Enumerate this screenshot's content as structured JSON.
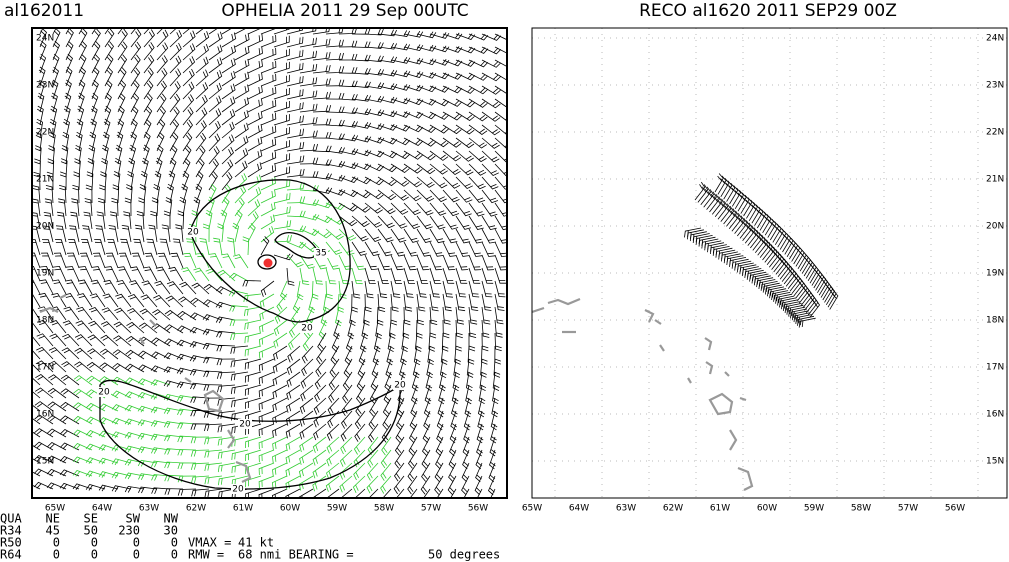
{
  "left_panel": {
    "id": "al162011",
    "title": "OPHELIA 2011 29 Sep 00UTC",
    "lat_labels": [
      "24N",
      "23N",
      "22N",
      "21N",
      "20N",
      "19N",
      "18N",
      "17N",
      "16N",
      "15N"
    ],
    "lon_labels": [
      "65W",
      "64W",
      "63W",
      "62W",
      "61W",
      "60W",
      "59W",
      "58W",
      "57W",
      "56W"
    ],
    "contour_labels": [
      "20",
      "20",
      "20",
      "20",
      "20",
      "20",
      "35"
    ]
  },
  "right_panel": {
    "title": "RECO al1620 2011 SEP29 00Z",
    "lat_labels": [
      "24N",
      "23N",
      "22N",
      "21N",
      "20N",
      "19N",
      "18N",
      "17N",
      "16N",
      "15N"
    ],
    "lon_labels": [
      "65W",
      "64W",
      "63W",
      "62W",
      "61W",
      "60W",
      "59W",
      "58W",
      "57W",
      "56W"
    ]
  },
  "table": {
    "header": [
      "QUA",
      "NE",
      "SE",
      "SW",
      "NW"
    ],
    "rows": [
      [
        "R34",
        "45",
        "50",
        "230",
        "30"
      ],
      [
        "R50",
        "0",
        "0",
        "0",
        "0"
      ],
      [
        "R64",
        "0",
        "0",
        "0",
        "0"
      ]
    ]
  },
  "intensity": {
    "vmax_label": "VMAX =",
    "vmax": "41 kt",
    "rmw_label": "RMW =",
    "rmw": "68 nmi BEARING =",
    "bearing": "50 degrees"
  }
}
